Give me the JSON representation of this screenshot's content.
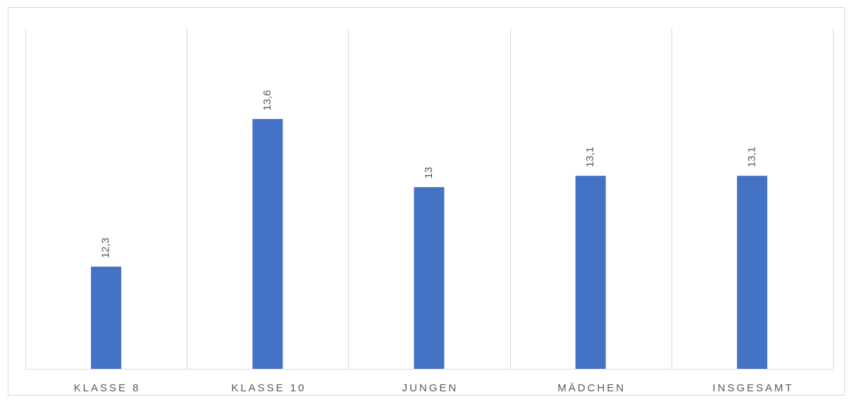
{
  "chart_data": {
    "type": "bar",
    "title": "",
    "xlabel": "",
    "ylabel": "",
    "categories": [
      "KLASSE 8",
      "KLASSE 10",
      "JUNGEN",
      "MÄDCHEN",
      "INSGESAMT"
    ],
    "values": [
      12.3,
      13.6,
      13,
      13.1,
      13.1
    ],
    "data_labels": [
      "12,3",
      "13,6",
      "13",
      "13,1",
      "13,1"
    ],
    "ylim": [
      11.4,
      14.4
    ],
    "grid": "vertical category separators",
    "legend": "none",
    "colors": {
      "bar": "#4472c4",
      "grid": "#d9d9d9",
      "text": "#595959"
    }
  }
}
